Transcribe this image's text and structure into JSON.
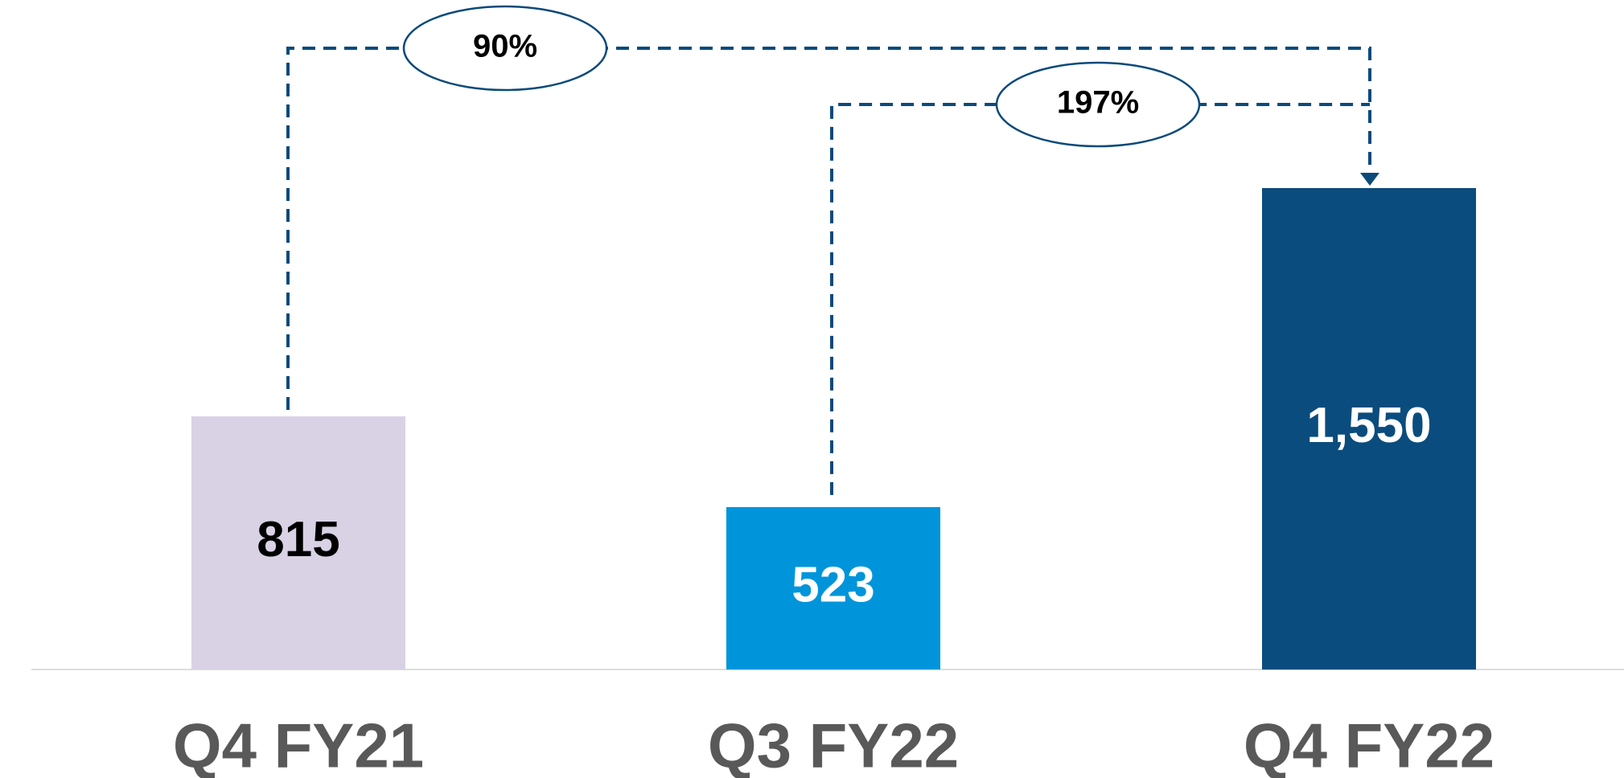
{
  "chart_data": {
    "type": "bar",
    "categories": [
      "Q4 FY21",
      "Q3 FY22",
      "Q4 FY22"
    ],
    "values": [
      815,
      523,
      1550
    ],
    "value_labels": [
      "815",
      "523",
      "1,550"
    ],
    "colors": [
      "#d9d2e5",
      "#0095da",
      "#0a4c7d"
    ],
    "label_colors": [
      "#000000",
      "#ffffff",
      "#ffffff"
    ],
    "annotations": [
      "90%",
      "197%"
    ],
    "annotation_color": "#0b4a7a"
  }
}
